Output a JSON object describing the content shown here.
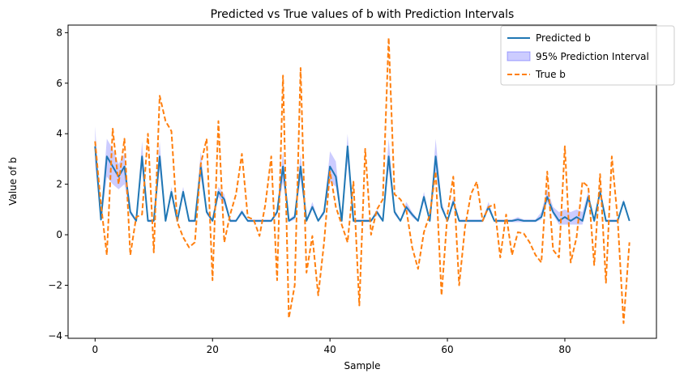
{
  "chart_data": {
    "type": "line",
    "title": "Predicted vs True values of b with Prediction Intervals",
    "xlabel": "Sample",
    "ylabel": "Value of b",
    "xlim": [
      -4.6,
      95.6
    ],
    "ylim": [
      -4.1,
      8.3
    ],
    "xticks": [
      0,
      20,
      40,
      60,
      80
    ],
    "yticks": [
      -4,
      -2,
      0,
      2,
      4,
      6,
      8
    ],
    "grid": false,
    "legend_position": "top-right",
    "x": [
      0,
      1,
      2,
      3,
      4,
      5,
      6,
      7,
      8,
      9,
      10,
      11,
      12,
      13,
      14,
      15,
      16,
      17,
      18,
      19,
      20,
      21,
      22,
      23,
      24,
      25,
      26,
      27,
      28,
      29,
      30,
      31,
      32,
      33,
      34,
      35,
      36,
      37,
      38,
      39,
      40,
      41,
      42,
      43,
      44,
      45,
      46,
      47,
      48,
      49,
      50,
      51,
      52,
      53,
      54,
      55,
      56,
      57,
      58,
      59,
      60,
      61,
      62,
      63,
      64,
      65,
      66,
      67,
      68,
      69,
      70,
      71,
      72,
      73,
      74,
      75,
      76,
      77,
      78,
      79,
      80,
      81,
      82,
      83,
      84,
      85,
      86,
      87,
      88,
      89,
      90,
      91
    ],
    "series": [
      {
        "name": "Predicted b",
        "color": "#1f77b4",
        "style": "solid",
        "values": [
          3.5,
          0.6,
          3.1,
          2.7,
          2.3,
          2.7,
          0.9,
          0.55,
          3.1,
          0.55,
          0.55,
          3.1,
          0.55,
          1.7,
          0.55,
          1.7,
          0.55,
          0.55,
          2.7,
          0.9,
          0.55,
          1.7,
          1.4,
          0.55,
          0.55,
          0.9,
          0.55,
          0.55,
          0.55,
          0.55,
          0.55,
          0.9,
          2.7,
          0.55,
          0.7,
          2.7,
          0.55,
          1.1,
          0.55,
          0.9,
          2.7,
          2.3,
          0.55,
          3.5,
          0.55,
          0.55,
          0.55,
          0.55,
          0.9,
          0.55,
          3.1,
          0.9,
          0.55,
          1.1,
          0.8,
          0.55,
          1.5,
          0.55,
          3.1,
          1.1,
          0.55,
          1.3,
          0.55,
          0.55,
          0.55,
          0.55,
          0.55,
          1.1,
          0.55,
          0.55,
          0.55,
          0.55,
          0.6,
          0.55,
          0.55,
          0.55,
          0.7,
          1.5,
          0.9,
          0.55,
          0.7,
          0.55,
          0.7,
          0.55,
          1.5,
          0.55,
          1.7,
          0.55,
          0.55,
          0.55,
          1.3,
          0.55
        ]
      },
      {
        "name": "True b",
        "color": "#ff7f0e",
        "style": "dashed",
        "values": [
          3.7,
          1.2,
          -0.8,
          4.2,
          2.0,
          3.8,
          -0.8,
          0.7,
          0.8,
          4.0,
          -0.7,
          5.5,
          4.5,
          4.1,
          0.5,
          -0.1,
          -0.5,
          -0.3,
          2.8,
          3.8,
          -1.8,
          4.5,
          -0.3,
          0.8,
          1.6,
          3.2,
          0.7,
          0.6,
          -0.05,
          1.2,
          3.1,
          -1.8,
          6.3,
          -3.3,
          -2.0,
          6.6,
          -1.5,
          -0.05,
          -2.4,
          -0.3,
          2.5,
          1.1,
          0.4,
          -0.3,
          2.1,
          -2.8,
          3.4,
          0.0,
          1.0,
          1.4,
          7.8,
          1.6,
          1.4,
          1.0,
          -0.5,
          -1.35,
          0.1,
          0.8,
          2.5,
          -2.4,
          0.8,
          2.3,
          -2.0,
          0.3,
          1.6,
          2.1,
          0.55,
          1.1,
          1.2,
          -0.9,
          0.8,
          -0.8,
          0.1,
          0.05,
          -0.3,
          -0.8,
          -1.1,
          2.5,
          -0.6,
          -0.9,
          3.5,
          -1.1,
          -0.1,
          2.1,
          1.9,
          -1.2,
          2.4,
          -1.9,
          3.1,
          0.6,
          -3.5,
          -0.3
        ]
      }
    ],
    "interval": {
      "name": "95% Prediction Interval",
      "color": "#0000ff",
      "fill_opacity": 0.2,
      "lower": [
        2.8,
        0.5,
        2.3,
        2.0,
        1.8,
        2.0,
        0.8,
        0.5,
        2.6,
        0.5,
        0.5,
        2.6,
        0.5,
        1.5,
        0.5,
        1.5,
        0.5,
        0.5,
        2.3,
        0.8,
        0.5,
        1.5,
        1.2,
        0.5,
        0.5,
        0.8,
        0.5,
        0.5,
        0.5,
        0.5,
        0.5,
        0.8,
        2.1,
        0.5,
        0.6,
        2.2,
        0.5,
        1.0,
        0.5,
        0.8,
        2.1,
        1.9,
        0.5,
        2.9,
        0.5,
        0.5,
        0.5,
        0.5,
        0.8,
        0.5,
        2.6,
        0.8,
        0.5,
        1.0,
        0.7,
        0.5,
        1.3,
        0.5,
        2.5,
        1.0,
        0.5,
        1.2,
        0.5,
        0.5,
        0.5,
        0.5,
        0.5,
        1.0,
        0.5,
        0.5,
        0.5,
        0.5,
        0.5,
        0.5,
        0.5,
        0.5,
        0.6,
        1.3,
        0.8,
        0.4,
        0.4,
        0.4,
        0.4,
        0.4,
        1.3,
        0.5,
        1.5,
        0.5,
        0.5,
        0.5,
        1.2,
        0.5
      ],
      "upper": [
        4.3,
        0.8,
        3.8,
        3.4,
        2.8,
        3.2,
        1.0,
        0.6,
        3.7,
        0.6,
        0.6,
        3.7,
        0.6,
        1.9,
        0.6,
        1.9,
        0.6,
        0.6,
        3.3,
        1.0,
        0.6,
        1.9,
        1.6,
        0.6,
        0.6,
        1.0,
        0.6,
        0.6,
        0.6,
        0.6,
        0.6,
        1.0,
        3.3,
        0.6,
        0.8,
        3.2,
        0.6,
        1.3,
        0.6,
        1.0,
        3.3,
        2.9,
        0.6,
        4.0,
        0.6,
        0.6,
        0.6,
        0.6,
        1.0,
        0.6,
        3.8,
        1.0,
        0.6,
        1.3,
        0.9,
        0.6,
        1.7,
        0.6,
        3.8,
        1.3,
        0.6,
        1.5,
        0.6,
        0.6,
        0.6,
        0.6,
        0.6,
        1.3,
        0.6,
        0.6,
        0.6,
        0.6,
        0.7,
        0.6,
        0.6,
        0.6,
        0.9,
        1.8,
        1.1,
        0.9,
        1.0,
        0.9,
        1.0,
        0.9,
        1.7,
        0.6,
        1.9,
        0.6,
        0.6,
        0.6,
        1.4,
        0.6
      ]
    },
    "legend": [
      "Predicted b",
      "95% Prediction Interval",
      "True b"
    ]
  }
}
